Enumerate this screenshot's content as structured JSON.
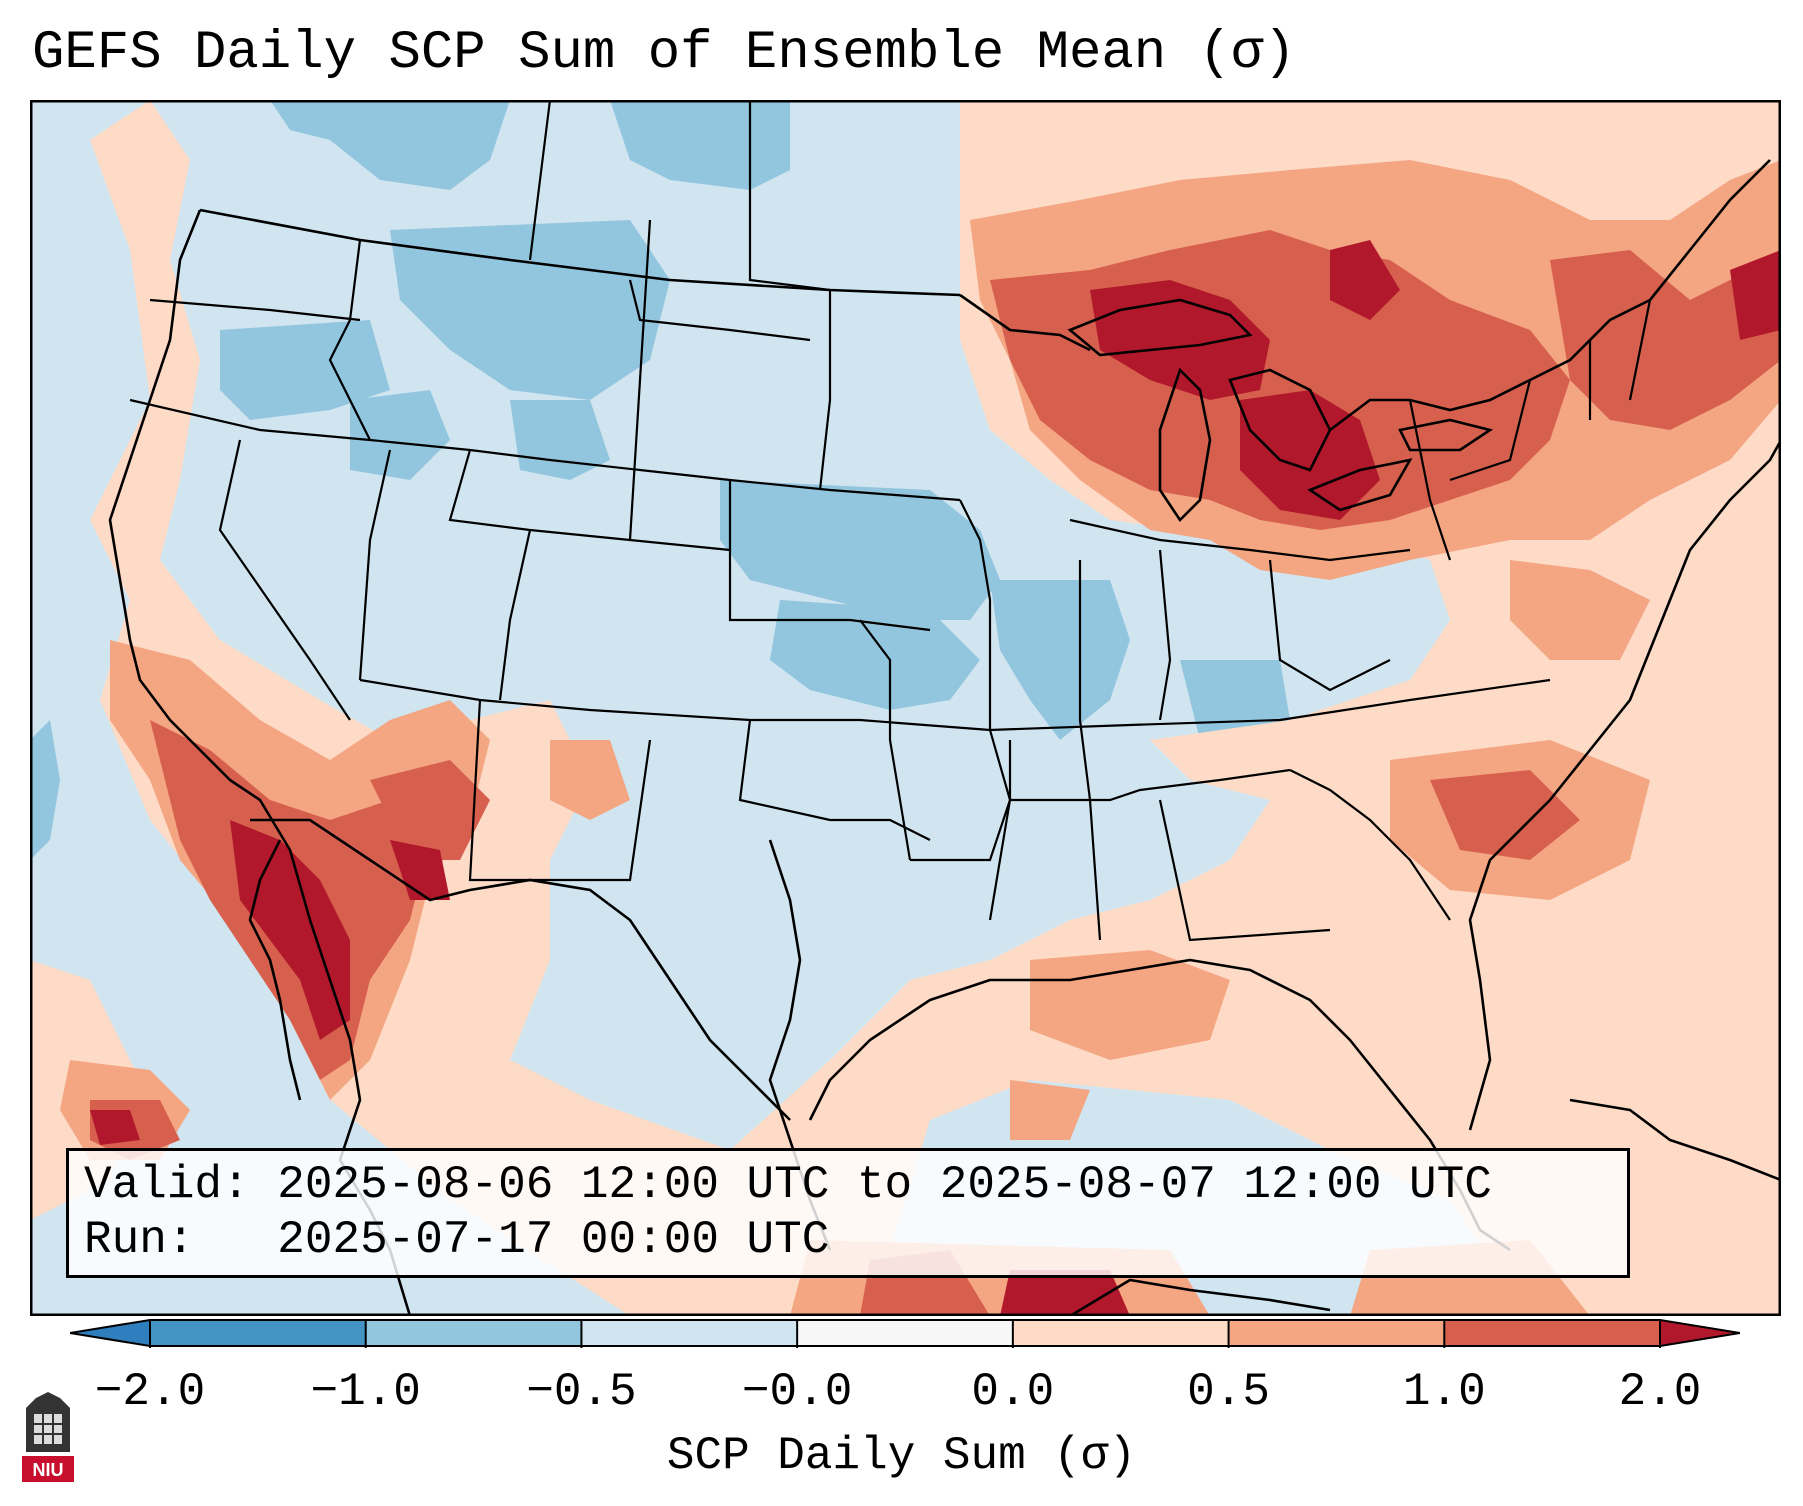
{
  "title": "GEFS Daily SCP Sum of Ensemble Mean (σ)",
  "info": {
    "valid_label": "Valid:",
    "valid_value": "2025-08-06 12:00 UTC to 2025-08-07 12:00 UTC",
    "run_label": "Run:",
    "run_value": "2025-07-17 00:00 UTC"
  },
  "colorbar": {
    "label": "SCP Daily Sum (σ)",
    "ticks": [
      "−2.0",
      "−1.0",
      "−0.5",
      "−0.0",
      "0.0",
      "0.5",
      "1.0",
      "2.0"
    ],
    "colors": [
      "#2f7fbf",
      "#4393c3",
      "#92c5de",
      "#d1e5f0",
      "#f7f7f7",
      "#fddbc7",
      "#f4a582",
      "#d6604d",
      "#b2182b"
    ],
    "extend": "both"
  },
  "map": {
    "region": "Contiguous United States",
    "background_color": "#d1e5f0",
    "border_color": "#000000"
  },
  "logo": {
    "text": "NIU",
    "color": "#c8102e"
  }
}
